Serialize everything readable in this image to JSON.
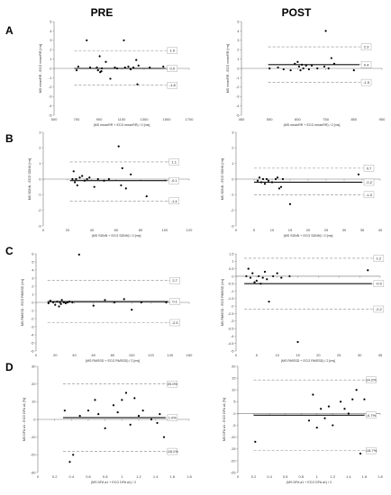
{
  "figure": {
    "column_titles": [
      "PRE",
      "POST"
    ],
    "row_letters": [
      "A",
      "B",
      "C",
      "D"
    ]
  },
  "chart_data": [
    {
      "type": "scatter",
      "row": "A",
      "column": "PRE",
      "xlabel": "(MS meanRR + ECG meanRR) / 2 [ms]",
      "ylabel": "MS meanRR - ECG meanRR [ms]",
      "xlim": [
        500,
        1700
      ],
      "ylim": [
        -5,
        5
      ],
      "xticks": [
        500,
        700,
        900,
        1100,
        1300,
        1500,
        1700
      ],
      "yticks": [
        -5,
        -4,
        -3,
        -2,
        -1,
        0,
        1,
        2,
        3,
        4,
        5
      ],
      "mean": 0.0,
      "upper_loa": 1.9,
      "lower_loa": -1.8,
      "labels": {
        "mean": "0.0",
        "upper": "1.9",
        "lower": "-1.8"
      },
      "line_x_range": [
        680,
        1490
      ],
      "points": [
        [
          700,
          -0.2
        ],
        [
          715,
          0.2
        ],
        [
          790,
          3.0
        ],
        [
          820,
          0.1
        ],
        [
          880,
          0.1
        ],
        [
          890,
          -0.2
        ],
        [
          905,
          1.3
        ],
        [
          910,
          -0.4
        ],
        [
          920,
          -0.3
        ],
        [
          925,
          0.0
        ],
        [
          960,
          0.7
        ],
        [
          1000,
          -1.1
        ],
        [
          1040,
          0.1
        ],
        [
          1060,
          0.0
        ],
        [
          1120,
          3.0
        ],
        [
          1130,
          0.1
        ],
        [
          1160,
          0.2
        ],
        [
          1180,
          -0.1
        ],
        [
          1205,
          0.1
        ],
        [
          1230,
          0.9
        ],
        [
          1240,
          -1.7
        ],
        [
          1250,
          0.3
        ],
        [
          1350,
          0.1
        ],
        [
          1470,
          0.2
        ]
      ]
    },
    {
      "type": "scatter",
      "row": "A",
      "column": "POST",
      "xlabel": "(MS meanRR + ECG meanRR) / 2 [ms]",
      "ylabel": "MS meanRR - ECG meanRR [ms]",
      "xlim": [
        450,
        950
      ],
      "ylim": [
        -5,
        5
      ],
      "xticks": [
        450,
        550,
        650,
        750,
        850,
        950
      ],
      "yticks": [
        -5,
        -4,
        -3,
        -2,
        -1,
        0,
        1,
        2,
        3,
        4,
        5
      ],
      "mean": 0.4,
      "upper_loa": 2.3,
      "lower_loa": -1.5,
      "labels": {
        "mean": "0.4",
        "upper": "2.3",
        "lower": "-1.5"
      },
      "line_x_range": [
        545,
        870
      ],
      "points": [
        [
          550,
          0.0
        ],
        [
          580,
          0.1
        ],
        [
          600,
          -0.1
        ],
        [
          625,
          -0.2
        ],
        [
          640,
          0.5
        ],
        [
          650,
          0.7
        ],
        [
          655,
          0.2
        ],
        [
          660,
          -0.2
        ],
        [
          665,
          0.4
        ],
        [
          670,
          0.0
        ],
        [
          680,
          0.3
        ],
        [
          690,
          -0.1
        ],
        [
          700,
          0.3
        ],
        [
          720,
          0.0
        ],
        [
          745,
          0.2
        ],
        [
          750,
          4.0
        ],
        [
          760,
          0.0
        ],
        [
          770,
          1.1
        ],
        [
          780,
          0.5
        ],
        [
          850,
          -0.2
        ]
      ]
    },
    {
      "type": "scatter",
      "row": "B",
      "column": "PRE",
      "xlabel": "(MS SDNN + ECG SDNN) / 2 [ms]",
      "ylabel": "MS SDNN - ECG SDNN [ms]",
      "xlim": [
        0,
        120
      ],
      "ylim": [
        -3,
        3
      ],
      "xticks": [
        0,
        20,
        40,
        60,
        80,
        100,
        120
      ],
      "yticks": [
        -3,
        -2,
        -1,
        0,
        1,
        2,
        3
      ],
      "mean": -0.1,
      "upper_loa": 1.1,
      "lower_loa": -1.4,
      "labels": {
        "mean": "-0.1",
        "upper": "1.1",
        "lower": "-1.4"
      },
      "line_x_range": [
        22,
        102
      ],
      "points": [
        [
          24,
          0.0
        ],
        [
          25,
          0.5
        ],
        [
          26,
          -0.2
        ],
        [
          27,
          0.0
        ],
        [
          28,
          -0.4
        ],
        [
          30,
          0.1
        ],
        [
          32,
          0.2
        ],
        [
          34,
          -0.1
        ],
        [
          36,
          0.0
        ],
        [
          38,
          0.1
        ],
        [
          42,
          -0.5
        ],
        [
          45,
          0.0
        ],
        [
          50,
          -0.1
        ],
        [
          54,
          0.0
        ],
        [
          62,
          2.1
        ],
        [
          64,
          -0.4
        ],
        [
          65,
          0.7
        ],
        [
          68,
          -0.6
        ],
        [
          72,
          0.3
        ],
        [
          85,
          -1.1
        ]
      ]
    },
    {
      "type": "scatter",
      "row": "B",
      "column": "POST",
      "xlabel": "(MS SDNN + ECG SDNN) / 2 [ms]",
      "ylabel": "MS SDNN - ECG SDNN [ms]",
      "xlim": [
        0,
        40
      ],
      "ylim": [
        -3,
        3
      ],
      "xticks": [
        0,
        5,
        10,
        15,
        20,
        25,
        30,
        35,
        40
      ],
      "yticks": [
        -3,
        -2,
        -1,
        0,
        1,
        2,
        3
      ],
      "mean": -0.2,
      "upper_loa": 0.7,
      "lower_loa": -1.0,
      "labels": {
        "mean": "-0.2",
        "upper": "0.7",
        "lower": "-1.0"
      },
      "line_x_range": [
        5,
        35
      ],
      "points": [
        [
          6,
          -0.1
        ],
        [
          6.5,
          0.1
        ],
        [
          7,
          -0.2
        ],
        [
          7.5,
          0.0
        ],
        [
          8,
          -0.3
        ],
        [
          8.5,
          0.0
        ],
        [
          9,
          -0.1
        ],
        [
          10,
          -0.2
        ],
        [
          11,
          0.0
        ],
        [
          11.5,
          0.1
        ],
        [
          12,
          -0.6
        ],
        [
          12.5,
          -0.5
        ],
        [
          13,
          0.0
        ],
        [
          15,
          -1.6
        ],
        [
          34,
          0.3
        ]
      ]
    },
    {
      "type": "scatter",
      "row": "C",
      "column": "PRE",
      "xlabel": "(MS RMSSD + ECG RMSSD) / 2 [ms]",
      "ylabel": "MS RMSSD - ECG RMSSD [ms]",
      "xlim": [
        0,
        160
      ],
      "ylim": [
        -6,
        6
      ],
      "xticks": [
        0,
        20,
        40,
        60,
        80,
        100,
        120,
        140,
        160
      ],
      "yticks": [
        -6,
        -5,
        -4,
        -3,
        -2,
        -1,
        0,
        1,
        2,
        3,
        4,
        5,
        6
      ],
      "mean": 0.1,
      "upper_loa": 2.7,
      "lower_loa": -2.5,
      "labels": {
        "mean": "0.1",
        "upper": "2.7",
        "lower": "-2.5"
      },
      "line_x_range": [
        12,
        138
      ],
      "points": [
        [
          13,
          -0.1
        ],
        [
          15,
          0.2
        ],
        [
          18,
          0.0
        ],
        [
          20,
          -0.3
        ],
        [
          22,
          0.1
        ],
        [
          24,
          -0.5
        ],
        [
          25,
          0.0
        ],
        [
          26,
          -0.2
        ],
        [
          27,
          0.3
        ],
        [
          29,
          0.0
        ],
        [
          31,
          -0.1
        ],
        [
          33,
          0.0
        ],
        [
          35,
          0.1
        ],
        [
          38,
          0.0
        ],
        [
          45,
          5.9
        ],
        [
          60,
          -0.4
        ],
        [
          72,
          0.3
        ],
        [
          82,
          0.0
        ],
        [
          92,
          0.4
        ],
        [
          100,
          -0.9
        ],
        [
          110,
          0.0
        ],
        [
          136,
          0.0
        ]
      ]
    },
    {
      "type": "scatter",
      "row": "C",
      "column": "POST",
      "xlabel": "(MS RMSSD + ECG RMSSD) / 2 [ms]",
      "ylabel": "MS RMSSD - ECG RMSSD [ms]",
      "xlim": [
        0,
        35
      ],
      "ylim": [
        -5,
        1.5
      ],
      "xticks": [
        0,
        5,
        10,
        15,
        20,
        25,
        30,
        35
      ],
      "yticks": [
        -5,
        -4.5,
        -4,
        -3.5,
        -3,
        -2.5,
        -2,
        -1.5,
        -1,
        -0.5,
        0,
        0.5,
        1,
        1.5
      ],
      "mean": -0.5,
      "upper_loa": 1.2,
      "lower_loa": -2.2,
      "labels": {
        "mean": "-0.5",
        "upper": "1.2",
        "lower": "-2.2"
      },
      "line_x_range": [
        2,
        33
      ],
      "points": [
        [
          2.5,
          0.0
        ],
        [
          3,
          0.5
        ],
        [
          3.5,
          -0.1
        ],
        [
          4,
          0.2
        ],
        [
          4.5,
          -0.4
        ],
        [
          5,
          -0.3
        ],
        [
          5.5,
          0.0
        ],
        [
          6,
          -0.5
        ],
        [
          6.5,
          -0.1
        ],
        [
          7,
          0.3
        ],
        [
          7.5,
          -0.2
        ],
        [
          8,
          -1.7
        ],
        [
          9,
          0.0
        ],
        [
          10,
          0.2
        ],
        [
          11,
          -0.1
        ],
        [
          13,
          0.0
        ],
        [
          15,
          -4.4
        ],
        [
          32,
          0.4
        ]
      ]
    },
    {
      "type": "scatter",
      "row": "D",
      "column": "PRE",
      "xlabel": "(MS DFA a1 + ECG DFA a1) / 2",
      "ylabel": "MS DFA a1 - ECG DFA a1 [%]",
      "xlim": [
        0,
        1.8
      ],
      "ylim": [
        -30,
        30
      ],
      "xticks": [
        0,
        0.2,
        0.4,
        0.6,
        0.8,
        1.0,
        1.2,
        1.4,
        1.6,
        1.8
      ],
      "yticks": [
        -30,
        -20,
        -10,
        0,
        10,
        20,
        30
      ],
      "mean": 1.0,
      "upper_loa": 20.0,
      "lower_loa": -18.1,
      "labels": {
        "mean": "1.0%",
        "upper": "20.0%",
        "lower": "-18.1%"
      },
      "line_x_range": [
        0.3,
        1.52
      ],
      "points": [
        [
          0.32,
          5.0
        ],
        [
          0.38,
          -24.0
        ],
        [
          0.42,
          -20.0
        ],
        [
          0.5,
          2.0
        ],
        [
          0.6,
          5.0
        ],
        [
          0.68,
          11.0
        ],
        [
          0.72,
          3.0
        ],
        [
          0.8,
          -5.0
        ],
        [
          0.9,
          8.0
        ],
        [
          0.95,
          4.0
        ],
        [
          1.0,
          11.0
        ],
        [
          1.05,
          15.0
        ],
        [
          1.1,
          -3.0
        ],
        [
          1.15,
          12.0
        ],
        [
          1.2,
          2.0
        ],
        [
          1.25,
          5.0
        ],
        [
          1.35,
          0.0
        ],
        [
          1.42,
          -2.0
        ],
        [
          1.45,
          3.0
        ],
        [
          1.5,
          -10.0
        ]
      ]
    },
    {
      "type": "scatter",
      "row": "D",
      "column": "POST",
      "xlabel": "(MS DFA a1 + ECG DFA a1) / 2",
      "ylabel": "MS DFA a1 - ECG DFA a1 [%]",
      "xlim": [
        0,
        1.8
      ],
      "ylim": [
        -25,
        20
      ],
      "xticks": [
        0,
        0.2,
        0.4,
        0.6,
        0.8,
        1.0,
        1.2,
        1.4,
        1.6,
        1.8
      ],
      "yticks": [
        -25,
        -20,
        -15,
        -10,
        -5,
        0,
        5,
        10,
        15,
        20
      ],
      "mean": -0.7,
      "upper_loa": 14.2,
      "lower_loa": -15.7,
      "labels": {
        "mean": "-0.7%",
        "upper": "14.2%",
        "lower": "-15.7%"
      },
      "line_x_range": [
        0.2,
        1.6
      ],
      "points": [
        [
          0.22,
          -12.0
        ],
        [
          0.9,
          -3.0
        ],
        [
          0.95,
          8.0
        ],
        [
          1.0,
          -6.0
        ],
        [
          1.05,
          2.0
        ],
        [
          1.1,
          -2.0
        ],
        [
          1.15,
          3.0
        ],
        [
          1.2,
          -5.0
        ],
        [
          1.3,
          5.0
        ],
        [
          1.35,
          2.0
        ],
        [
          1.4,
          0.0
        ],
        [
          1.45,
          6.0
        ],
        [
          1.5,
          10.0
        ],
        [
          1.55,
          -17.0
        ],
        [
          1.6,
          6.0
        ]
      ]
    }
  ]
}
